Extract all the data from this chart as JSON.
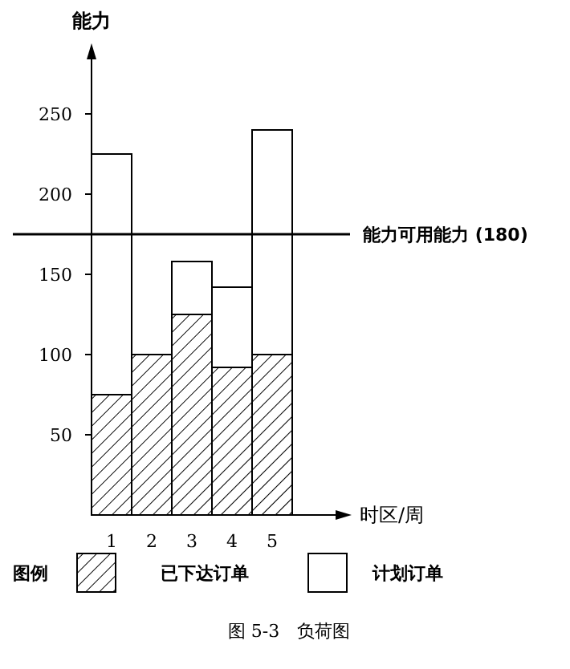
{
  "chart_data": {
    "type": "bar",
    "title": "图 5-3　负荷图",
    "xlabel": "时区/周",
    "ylabel": "能力",
    "legend_title": "图例",
    "legend": "bottom",
    "stacked": true,
    "categories": [
      "1",
      "2",
      "3",
      "4",
      "5"
    ],
    "series": [
      {
        "name": "已下达订单",
        "color": "#000000",
        "values": [
          75,
          100,
          125,
          92,
          100
        ]
      },
      {
        "name": "计划订单",
        "color": "#ffffff",
        "values": [
          150,
          0,
          33,
          50,
          140
        ]
      }
    ],
    "ylim": [
      0,
      290
    ],
    "yticks": [
      50,
      100,
      150,
      200,
      250
    ],
    "ref_lines": [
      {
        "axis": "y",
        "value": 175,
        "label": "能力可用能力 (180)"
      }
    ]
  }
}
